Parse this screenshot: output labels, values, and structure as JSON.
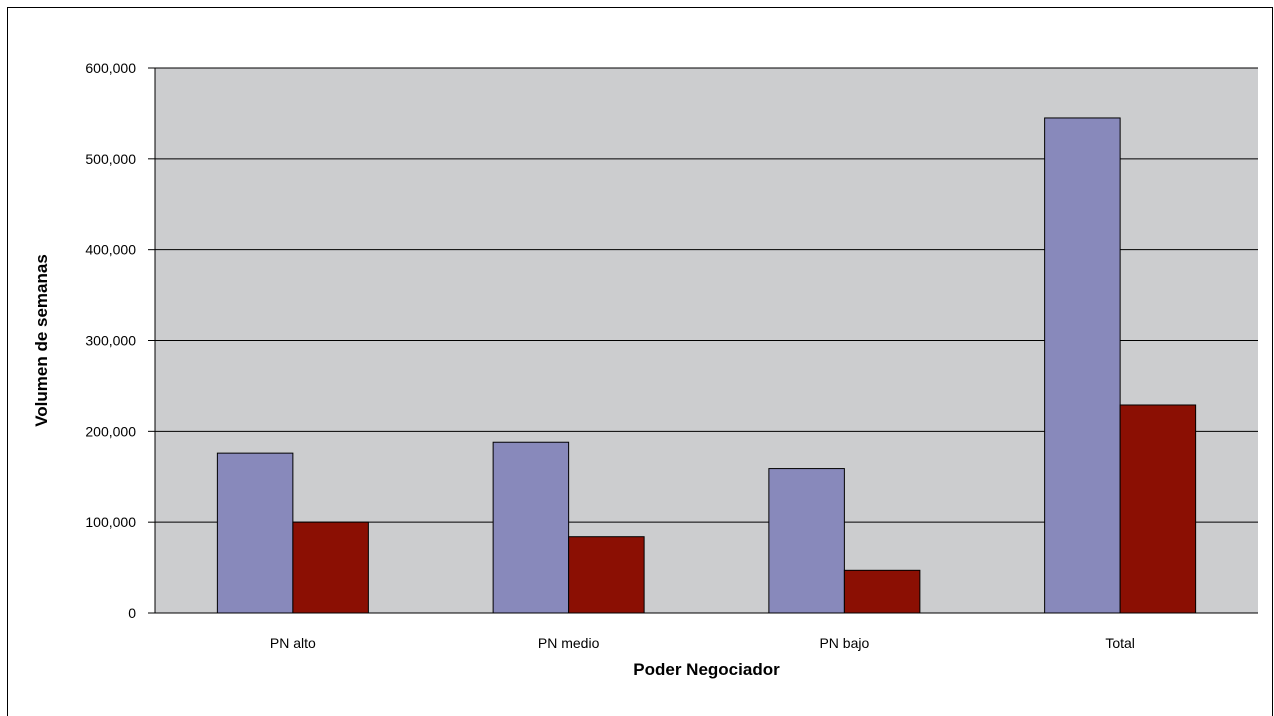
{
  "chart_data": {
    "type": "bar",
    "title": "",
    "xlabel": "Poder Negociador",
    "ylabel": "Volumen de semanas",
    "categories": [
      "PN alto",
      "PN medio",
      "PN bajo",
      "Total"
    ],
    "series": [
      {
        "color": "#8889bb",
        "values": [
          176000,
          188000,
          159000,
          545000
        ]
      },
      {
        "color": "#8b0f03",
        "values": [
          100000,
          84000,
          47000,
          229000
        ]
      }
    ],
    "ylim": [
      0,
      600000
    ],
    "yticks": [
      0,
      100000,
      200000,
      300000,
      400000,
      500000,
      600000
    ],
    "ytick_labels": [
      "0",
      "100,000",
      "200,000",
      "300,000",
      "400,000",
      "500,000",
      "600,000"
    ],
    "grid": true,
    "plot_background": "#cccdcf",
    "legend": "none"
  }
}
